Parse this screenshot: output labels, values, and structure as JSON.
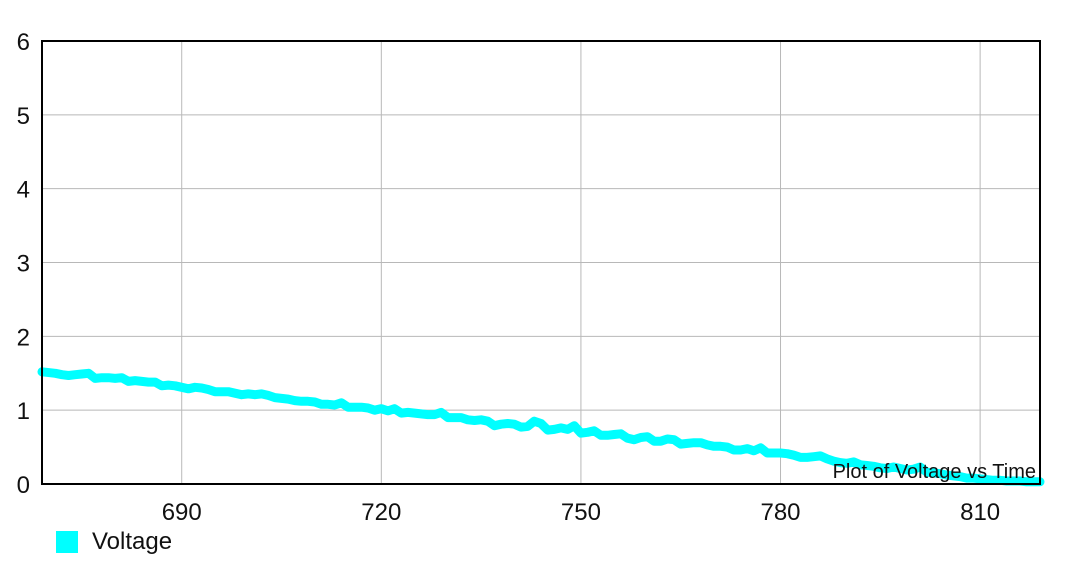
{
  "chart_data": {
    "type": "line",
    "description": "Plot of Voltage vs Time",
    "xlim": [
      669,
      819
    ],
    "ylim": [
      0,
      6
    ],
    "x_ticks": [
      690,
      720,
      750,
      780,
      810
    ],
    "y_ticks": [
      0,
      1,
      2,
      3,
      4,
      5,
      6
    ],
    "grid": true,
    "legend_position": "bottom-left",
    "series": [
      {
        "name": "Voltage",
        "color": "#00ffff",
        "points": [
          [
            669,
            1.52
          ],
          [
            671,
            1.5
          ],
          [
            672,
            1.48
          ],
          [
            673,
            1.47
          ],
          [
            674,
            1.48
          ],
          [
            675,
            1.49
          ],
          [
            676,
            1.5
          ],
          [
            677,
            1.43
          ],
          [
            678,
            1.44
          ],
          [
            679,
            1.44
          ],
          [
            680,
            1.43
          ],
          [
            681,
            1.44
          ],
          [
            682,
            1.39
          ],
          [
            683,
            1.4
          ],
          [
            684,
            1.39
          ],
          [
            685,
            1.38
          ],
          [
            686,
            1.38
          ],
          [
            687,
            1.33
          ],
          [
            688,
            1.34
          ],
          [
            689,
            1.33
          ],
          [
            690,
            1.31
          ],
          [
            691,
            1.29
          ],
          [
            692,
            1.31
          ],
          [
            693,
            1.3
          ],
          [
            694,
            1.28
          ],
          [
            695,
            1.25
          ],
          [
            696,
            1.25
          ],
          [
            697,
            1.25
          ],
          [
            698,
            1.23
          ],
          [
            699,
            1.21
          ],
          [
            700,
            1.22
          ],
          [
            701,
            1.21
          ],
          [
            702,
            1.22
          ],
          [
            703,
            1.2
          ],
          [
            704,
            1.17
          ],
          [
            705,
            1.16
          ],
          [
            706,
            1.15
          ],
          [
            707,
            1.13
          ],
          [
            708,
            1.12
          ],
          [
            709,
            1.12
          ],
          [
            710,
            1.11
          ],
          [
            711,
            1.08
          ],
          [
            712,
            1.08
          ],
          [
            713,
            1.07
          ],
          [
            714,
            1.1
          ],
          [
            715,
            1.04
          ],
          [
            716,
            1.04
          ],
          [
            717,
            1.04
          ],
          [
            718,
            1.03
          ],
          [
            719,
            1.0
          ],
          [
            720,
            1.02
          ],
          [
            721,
            0.99
          ],
          [
            722,
            1.02
          ],
          [
            723,
            0.96
          ],
          [
            724,
            0.97
          ],
          [
            725,
            0.96
          ],
          [
            726,
            0.95
          ],
          [
            727,
            0.94
          ],
          [
            728,
            0.94
          ],
          [
            729,
            0.97
          ],
          [
            730,
            0.9
          ],
          [
            731,
            0.9
          ],
          [
            732,
            0.9
          ],
          [
            733,
            0.87
          ],
          [
            734,
            0.86
          ],
          [
            735,
            0.87
          ],
          [
            736,
            0.85
          ],
          [
            737,
            0.79
          ],
          [
            738,
            0.81
          ],
          [
            739,
            0.82
          ],
          [
            740,
            0.81
          ],
          [
            741,
            0.77
          ],
          [
            742,
            0.78
          ],
          [
            743,
            0.85
          ],
          [
            744,
            0.82
          ],
          [
            745,
            0.73
          ],
          [
            746,
            0.74
          ],
          [
            747,
            0.76
          ],
          [
            748,
            0.74
          ],
          [
            749,
            0.79
          ],
          [
            750,
            0.69
          ],
          [
            751,
            0.7
          ],
          [
            752,
            0.72
          ],
          [
            753,
            0.66
          ],
          [
            754,
            0.66
          ],
          [
            755,
            0.67
          ],
          [
            756,
            0.68
          ],
          [
            757,
            0.62
          ],
          [
            758,
            0.6
          ],
          [
            759,
            0.63
          ],
          [
            760,
            0.64
          ],
          [
            761,
            0.58
          ],
          [
            762,
            0.58
          ],
          [
            763,
            0.61
          ],
          [
            764,
            0.6
          ],
          [
            765,
            0.54
          ],
          [
            766,
            0.55
          ],
          [
            767,
            0.56
          ],
          [
            768,
            0.56
          ],
          [
            769,
            0.53
          ],
          [
            770,
            0.51
          ],
          [
            771,
            0.51
          ],
          [
            772,
            0.5
          ],
          [
            773,
            0.46
          ],
          [
            774,
            0.46
          ],
          [
            775,
            0.48
          ],
          [
            776,
            0.45
          ],
          [
            777,
            0.49
          ],
          [
            778,
            0.42
          ],
          [
            779,
            0.42
          ],
          [
            780,
            0.42
          ],
          [
            781,
            0.41
          ],
          [
            782,
            0.39
          ],
          [
            783,
            0.36
          ],
          [
            784,
            0.36
          ],
          [
            785,
            0.37
          ],
          [
            786,
            0.38
          ],
          [
            787,
            0.34
          ],
          [
            788,
            0.31
          ],
          [
            789,
            0.29
          ],
          [
            790,
            0.28
          ],
          [
            791,
            0.3
          ],
          [
            792,
            0.26
          ],
          [
            793,
            0.25
          ],
          [
            794,
            0.24
          ],
          [
            795,
            0.22
          ],
          [
            796,
            0.21
          ],
          [
            797,
            0.23
          ],
          [
            798,
            0.21
          ],
          [
            799,
            0.19
          ],
          [
            800,
            0.2
          ],
          [
            801,
            0.23
          ],
          [
            802,
            0.16
          ],
          [
            803,
            0.15
          ],
          [
            804,
            0.14
          ],
          [
            805,
            0.12
          ],
          [
            806,
            0.11
          ],
          [
            807,
            0.1
          ],
          [
            808,
            0.08
          ],
          [
            809,
            0.08
          ],
          [
            810,
            0.07
          ],
          [
            811,
            0.06
          ],
          [
            812,
            0.05
          ],
          [
            813,
            0.05
          ],
          [
            814,
            0.04
          ],
          [
            815,
            0.04
          ],
          [
            816,
            0.04
          ],
          [
            817,
            0.03
          ],
          [
            818,
            0.03
          ],
          [
            819,
            0.03
          ]
        ]
      }
    ]
  }
}
